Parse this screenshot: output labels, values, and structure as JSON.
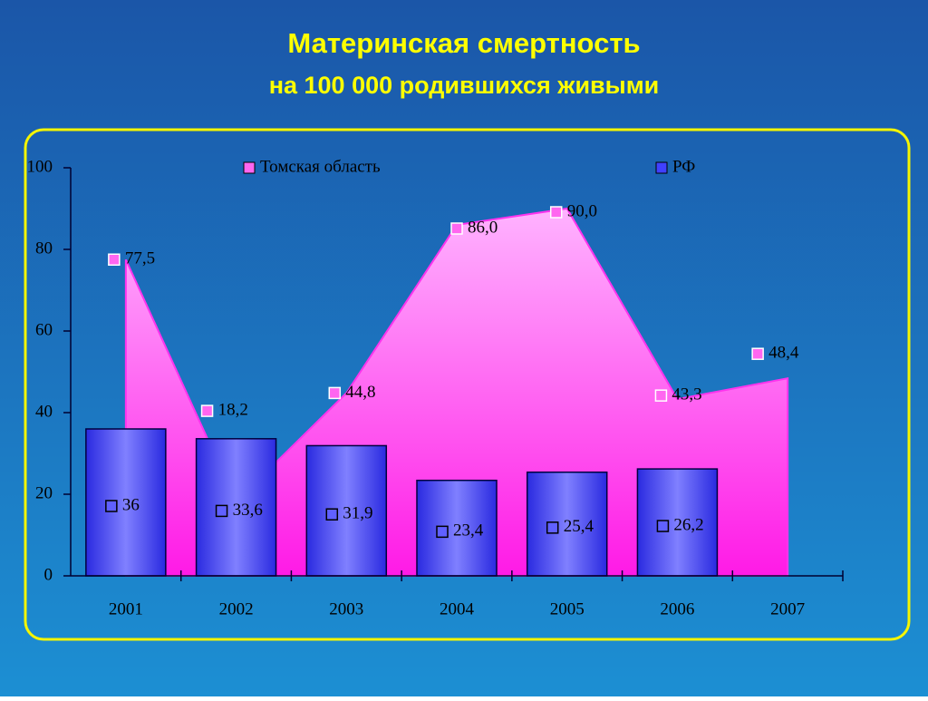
{
  "chart_data": {
    "type": "bar-area",
    "title": "Материнская смертность",
    "subtitle": "на 100 000 родившихся живыми",
    "categories": [
      "2001",
      "2002",
      "2003",
      "2004",
      "2005",
      "2006",
      "2007"
    ],
    "series": [
      {
        "name": "Томская область",
        "type": "area",
        "color": "#ff33ee",
        "values": [
          77.5,
          18.2,
          44.8,
          86.0,
          90.0,
          43.3,
          48.4
        ],
        "value_labels": [
          "77,5",
          "18,2",
          "44,8",
          "86,0",
          "90,0",
          "43,3",
          "48,4"
        ]
      },
      {
        "name": "РФ",
        "type": "bar",
        "color": "#4040ff",
        "values": [
          36,
          33.6,
          31.9,
          23.4,
          25.4,
          26.2,
          null
        ],
        "value_labels": [
          "36",
          "33,6",
          "31,9",
          "23,4",
          "25,4",
          "26,2",
          null
        ]
      }
    ],
    "ylim": [
      0,
      100
    ],
    "yticks": [
      0,
      20,
      40,
      60,
      80,
      100
    ]
  }
}
